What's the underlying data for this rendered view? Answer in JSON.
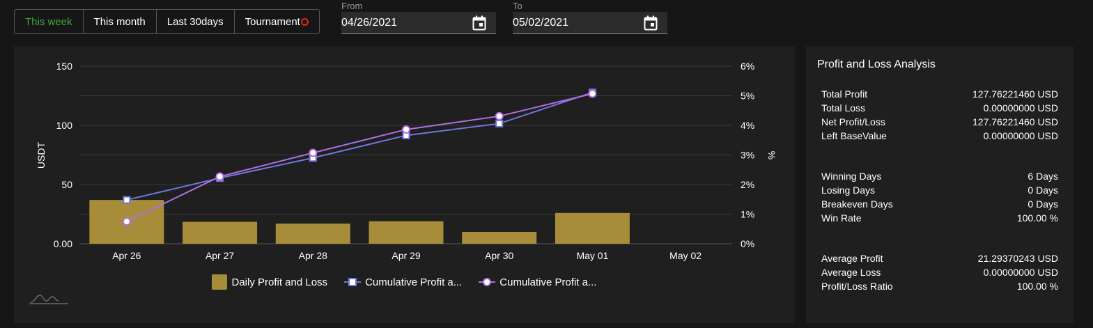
{
  "tabs": [
    {
      "label": "This week",
      "active": true
    },
    {
      "label": "This month",
      "active": false
    },
    {
      "label": "Last 30days",
      "active": false
    },
    {
      "label": "Tournament",
      "active": false
    }
  ],
  "date_from": {
    "label": "From",
    "value": "04/26/2021"
  },
  "date_to": {
    "label": "To",
    "value": "05/02/2021"
  },
  "chart_data": {
    "type": "bar",
    "categories": [
      "Apr 26",
      "Apr 27",
      "Apr 28",
      "Apr 29",
      "Apr 30",
      "May 01",
      "May 02"
    ],
    "ylabel": "USDT",
    "y2label": "%",
    "ylim": [
      0,
      150
    ],
    "y2lim": [
      0,
      6
    ],
    "y_ticks": [
      "0.00",
      "50",
      "100",
      "150"
    ],
    "y2_ticks": [
      "0%",
      "1%",
      "2%",
      "3%",
      "4%",
      "5%",
      "6%"
    ],
    "grid": true,
    "legend_position": "bottom",
    "series": [
      {
        "name": "Daily Profit and Loss",
        "kind": "bar",
        "axis": "left",
        "color": "#a78d3a",
        "values": [
          37,
          18.5,
          17,
          19,
          10,
          26,
          null
        ]
      },
      {
        "name": "Cumulative Profit a...",
        "kind": "line",
        "axis": "left",
        "marker": "square",
        "color": "#6f76df",
        "values": [
          37,
          55.5,
          72.5,
          91.5,
          101.5,
          127.76,
          null
        ]
      },
      {
        "name": "Cumulative Profit a...",
        "kind": "line",
        "axis": "right",
        "marker": "circle",
        "color": "#b06fe5",
        "values": [
          0.75,
          2.27,
          3.07,
          3.86,
          4.31,
          5.07,
          null
        ]
      }
    ]
  },
  "analysis": {
    "title": "Profit and Loss Analysis",
    "group1": [
      {
        "label": "Total Profit",
        "value": "127.76221460 USD"
      },
      {
        "label": "Total Loss",
        "value": "0.00000000 USD"
      },
      {
        "label": "Net Profit/Loss",
        "value": "127.76221460 USD"
      },
      {
        "label": "Left BaseValue",
        "value": "0.00000000 USD"
      }
    ],
    "group2": [
      {
        "label": "Winning Days",
        "value": "6 Days"
      },
      {
        "label": "Losing Days",
        "value": "0 Days"
      },
      {
        "label": "Breakeven Days",
        "value": "0 Days"
      },
      {
        "label": "Win Rate",
        "value": "100.00 %"
      }
    ],
    "group3": [
      {
        "label": "Average Profit",
        "value": "21.29370243 USD"
      },
      {
        "label": "Average Loss",
        "value": "0.00000000 USD"
      },
      {
        "label": "Profit/Loss Ratio",
        "value": "100.00 %"
      }
    ]
  }
}
